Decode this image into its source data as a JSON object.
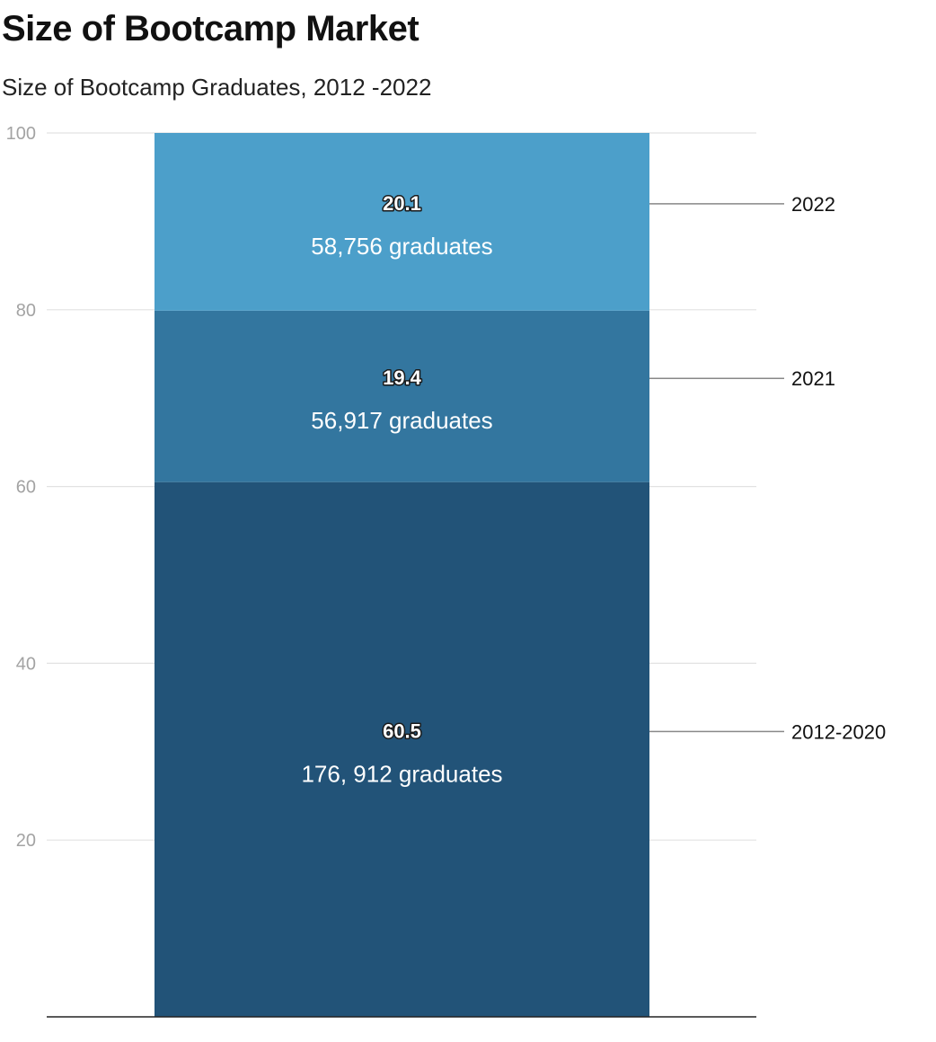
{
  "chart_data": {
    "type": "bar",
    "stacked": true,
    "title": "Size of Bootcamp Market",
    "subtitle": "Size of Bootcamp Graduates, 2012 -2022",
    "ylim": [
      0,
      100
    ],
    "yticks": [
      20,
      40,
      60,
      80,
      100
    ],
    "grid": true,
    "legend": "right",
    "series": [
      {
        "name": "2012-2020",
        "value": 60.5,
        "label": "60.5",
        "sublabel": "176, 912 graduates",
        "color": "#225378"
      },
      {
        "name": "2021",
        "value": 19.4,
        "label": "19.4",
        "sublabel": "56,917 graduates",
        "color": "#33769f"
      },
      {
        "name": "2022",
        "value": 20.1,
        "label": "20.1",
        "sublabel": "58,756 graduates",
        "color": "#4c9fca"
      }
    ]
  }
}
